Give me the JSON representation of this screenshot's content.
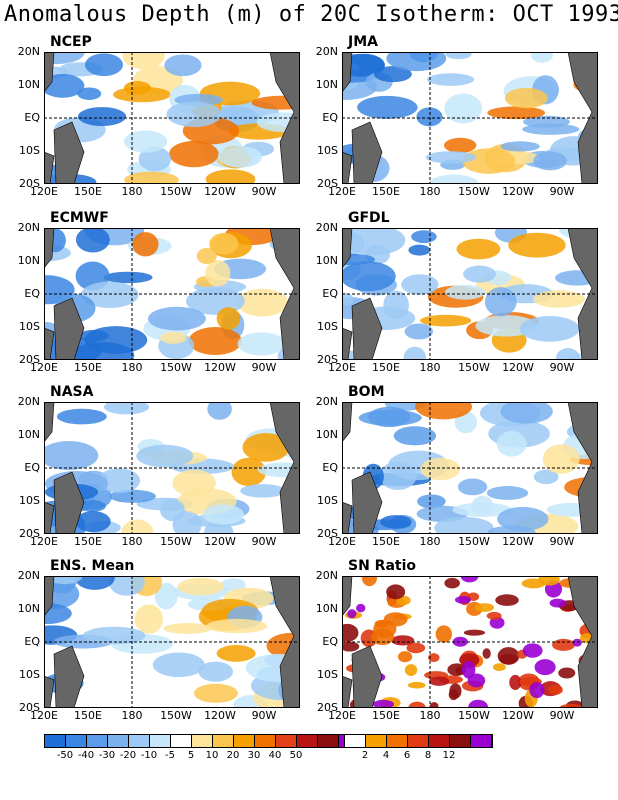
{
  "title": "Anomalous Depth (m) of 20C Isotherm: OCT 1993",
  "lat_labels": [
    "20N",
    "10N",
    "EQ",
    "10S",
    "20S"
  ],
  "lon_labels": [
    "120E",
    "150E",
    "180",
    "150W",
    "120W",
    "90W"
  ],
  "panels": [
    {
      "label": "NCEP"
    },
    {
      "label": "JMA"
    },
    {
      "label": "ECMWF"
    },
    {
      "label": "GFDL"
    },
    {
      "label": "NASA"
    },
    {
      "label": "BOM"
    },
    {
      "label": "ENS. Mean"
    },
    {
      "label": "SN Ratio"
    }
  ],
  "colorbar_anom": {
    "colors": [
      "#1f6fd6",
      "#3b86e2",
      "#5b9cea",
      "#7bb1ef",
      "#9ccaf5",
      "#c6e7fb",
      "#ffffff",
      "#fde49b",
      "#fbc64f",
      "#f5a000",
      "#f07000",
      "#e0401a",
      "#b81414",
      "#8c0f0f",
      "#9a00d0"
    ],
    "labels": [
      "-50",
      "-40",
      "-30",
      "-20",
      "-10",
      "-5",
      "5",
      "10",
      "20",
      "30",
      "40",
      "50"
    ]
  },
  "colorbar_sn": {
    "colors": [
      "#ffffff",
      "#f5a000",
      "#f07000",
      "#e03a10",
      "#b81414",
      "#8c0f0f",
      "#9a00d0"
    ],
    "labels": [
      "2",
      "4",
      "6",
      "8",
      "12"
    ]
  }
}
